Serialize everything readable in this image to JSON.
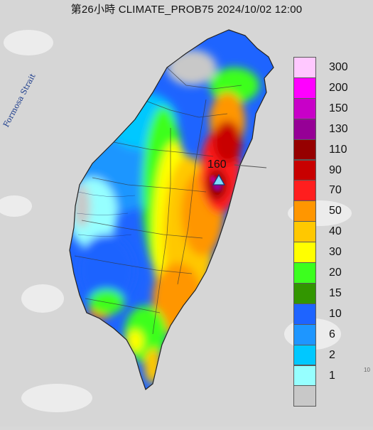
{
  "header": {
    "title": "第26小時 CLIMATE_PROB75 2024/10/02 12:00"
  },
  "map": {
    "strait_label": "Formosa Strait",
    "max_value_label": "160",
    "max_marker_icon": "triangle-marker-icon",
    "corner_fragment": "10"
  },
  "legend": {
    "items": [
      {
        "label": "300",
        "color": "#ffc8ff"
      },
      {
        "label": "200",
        "color": "#ff00ff"
      },
      {
        "label": "150",
        "color": "#c800c8"
      },
      {
        "label": "130",
        "color": "#960096"
      },
      {
        "label": "110",
        "color": "#960000"
      },
      {
        "label": "90",
        "color": "#c80000"
      },
      {
        "label": "70",
        "color": "#ff1e1e"
      },
      {
        "label": "50",
        "color": "#ff9600"
      },
      {
        "label": "40",
        "color": "#ffc800"
      },
      {
        "label": "30",
        "color": "#ffff00"
      },
      {
        "label": "20",
        "color": "#3cff1e"
      },
      {
        "label": "15",
        "color": "#329600"
      },
      {
        "label": "10",
        "color": "#1e64ff"
      },
      {
        "label": "6",
        "color": "#1e96ff"
      },
      {
        "label": "2",
        "color": "#00c8ff"
      },
      {
        "label": "1",
        "color": "#96ffff"
      },
      {
        "label": "",
        "color": "#c8c8c8"
      }
    ]
  }
}
